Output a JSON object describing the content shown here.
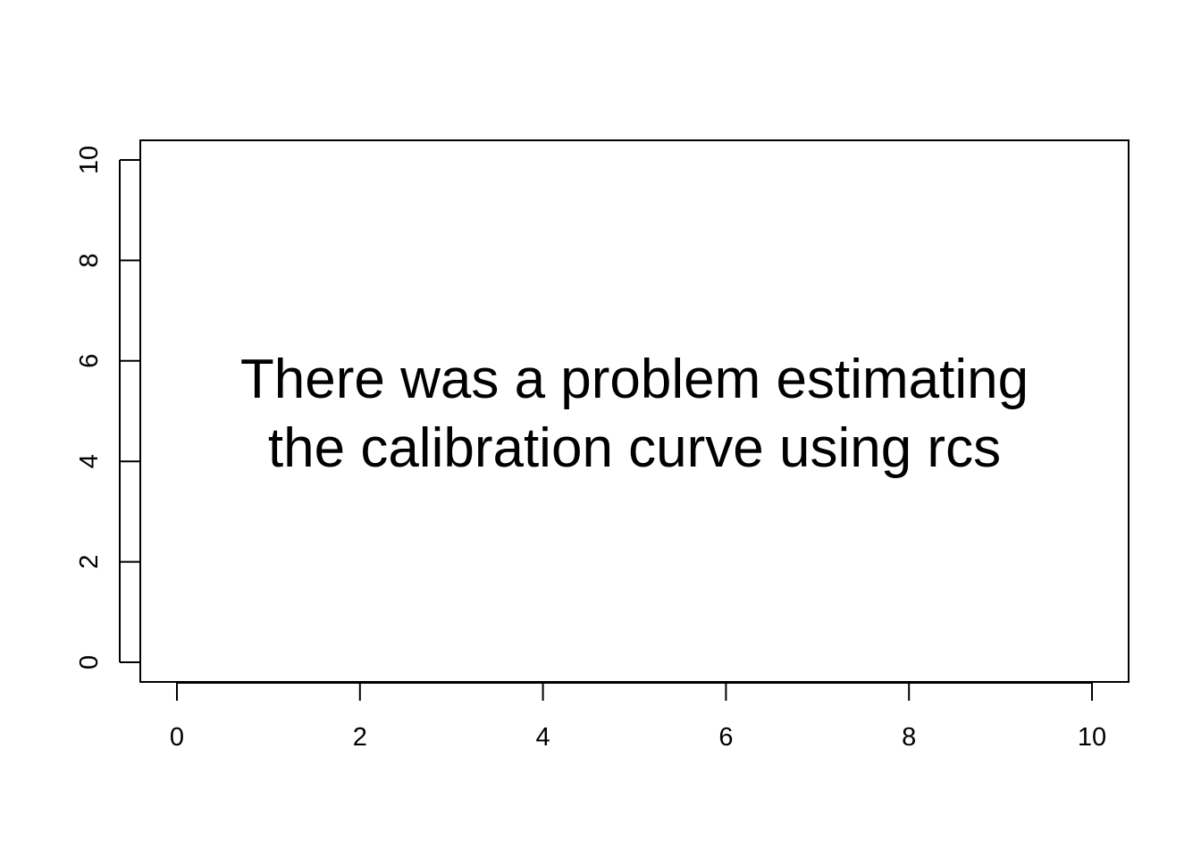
{
  "chart_data": {
    "type": "scatter",
    "title": "",
    "xlabel": "",
    "ylabel": "",
    "xlim": [
      0,
      10
    ],
    "ylim": [
      0,
      10
    ],
    "x_ticks": [
      "0",
      "2",
      "4",
      "6",
      "8",
      "10"
    ],
    "y_ticks": [
      "0",
      "2",
      "4",
      "6",
      "8",
      "10"
    ],
    "series": [],
    "grid": false,
    "legend": "none",
    "annotation": {
      "lines": [
        "There was a problem estimating",
        "the calibration curve using rcs"
      ]
    }
  },
  "colors": {
    "background": "#ffffff",
    "foreground": "#000000"
  }
}
